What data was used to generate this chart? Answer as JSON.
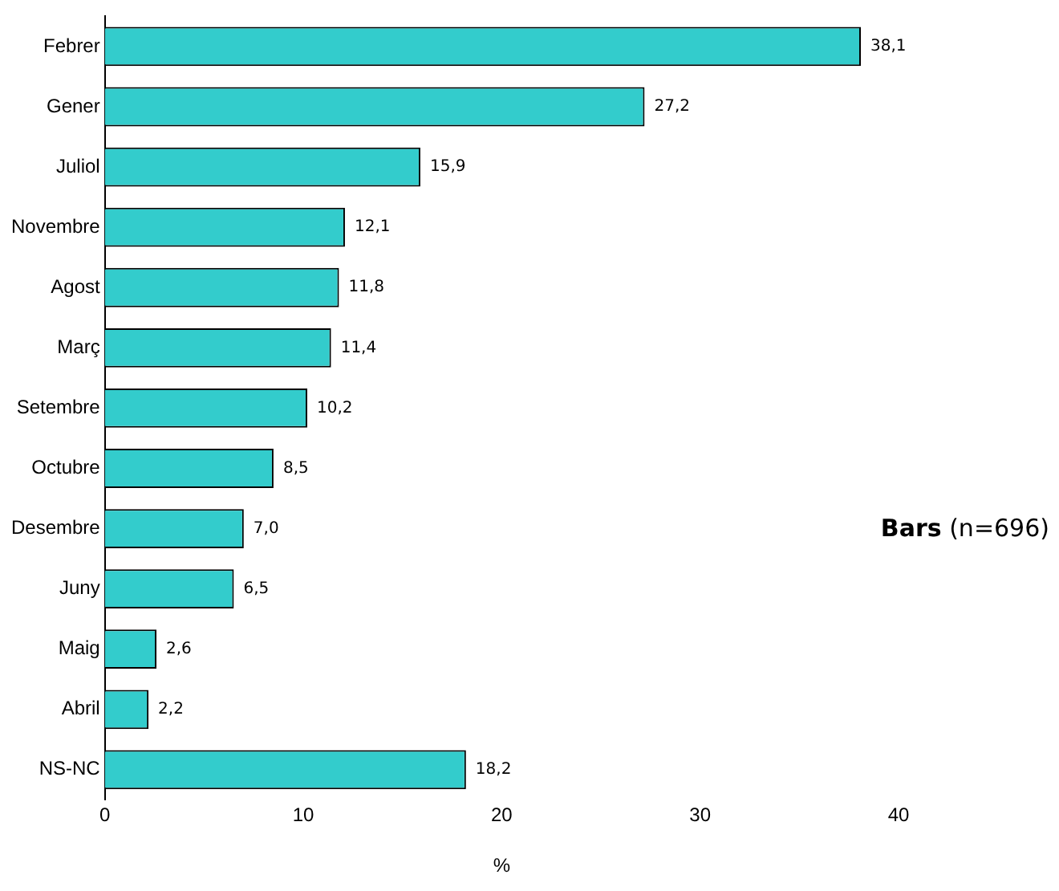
{
  "chart_data": {
    "type": "bar",
    "orientation": "horizontal",
    "categories": [
      "Febrer",
      "Gener",
      "Juliol",
      "Novembre",
      "Agost",
      "Març",
      "Setembre",
      "Octubre",
      "Desembre",
      "Juny",
      "Maig",
      "Abril",
      "NS-NC"
    ],
    "values": [
      38.1,
      27.2,
      15.9,
      12.1,
      11.8,
      11.4,
      10.2,
      8.5,
      7.0,
      6.5,
      2.6,
      2.2,
      18.2
    ],
    "value_labels": [
      "38,1",
      "27,2",
      "15,9",
      "12,1",
      "11,8",
      "11,4",
      "10,2",
      "8,5",
      "7,0",
      "6,5",
      "2,6",
      "2,2",
      "18,2"
    ],
    "color": "#33cccc",
    "xlim": [
      0,
      40
    ],
    "xticks": [
      0,
      10,
      20,
      30,
      40
    ],
    "xlabel": "%",
    "grid": false,
    "legend": false,
    "annotations": [
      "Bars",
      "(n=696)"
    ]
  }
}
